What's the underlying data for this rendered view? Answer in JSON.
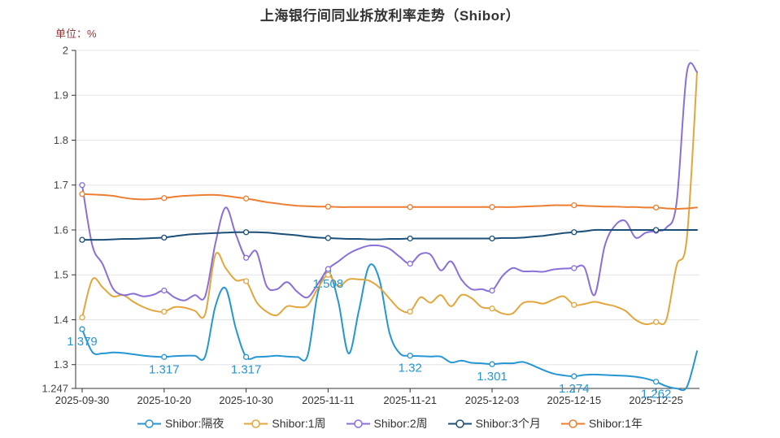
{
  "chart_data": {
    "type": "line",
    "title": "上海银行间同业拆放利率走势（Shibor）",
    "unit_label": "单位：%",
    "xlabel": "",
    "ylabel": "",
    "grid": true,
    "legend_position": "bottom",
    "y_axis_labels": [
      "2",
      "1.9",
      "1.8",
      "1.7",
      "1.6",
      "1.5",
      "1.4",
      "1.3",
      "1.247"
    ],
    "y_min": 1.247,
    "y_max": 2,
    "x_tick_labels": [
      "2025-09-30",
      "2025-10-20",
      "2025-10-30",
      "2025-11-11",
      "2025-11-21",
      "2025-12-03",
      "2025-12-15",
      "2025-12-25"
    ],
    "x_tick_indices": [
      0,
      8,
      16,
      24,
      32,
      40,
      48,
      56
    ],
    "num_points": 61,
    "colors": {
      "axis": "#333333",
      "gridline": "#e4e4e4",
      "title": "#333333",
      "unit_label": "#8b3a3a",
      "annotation": "#2596d3"
    },
    "series": [
      {
        "name": "Shibor:隔夜",
        "color": "#2596d3",
        "values": [
          1.379,
          1.328,
          1.325,
          1.327,
          1.326,
          1.323,
          1.32,
          1.318,
          1.317,
          1.319,
          1.32,
          1.32,
          1.318,
          1.43,
          1.47,
          1.38,
          1.317,
          1.317,
          1.318,
          1.32,
          1.318,
          1.317,
          1.32,
          1.46,
          1.508,
          1.44,
          1.325,
          1.42,
          1.52,
          1.49,
          1.37,
          1.325,
          1.32,
          1.319,
          1.318,
          1.318,
          1.305,
          1.309,
          1.304,
          1.303,
          1.301,
          1.303,
          1.303,
          1.306,
          1.298,
          1.288,
          1.28,
          1.276,
          1.274,
          1.277,
          1.278,
          1.277,
          1.276,
          1.275,
          1.273,
          1.269,
          1.262,
          1.252,
          1.247,
          1.25,
          1.33
        ]
      },
      {
        "name": "Shibor:1周",
        "color": "#e2a63d",
        "values": [
          1.405,
          1.49,
          1.472,
          1.452,
          1.455,
          1.44,
          1.428,
          1.42,
          1.418,
          1.428,
          1.427,
          1.42,
          1.412,
          1.545,
          1.515,
          1.488,
          1.486,
          1.44,
          1.418,
          1.41,
          1.43,
          1.428,
          1.432,
          1.47,
          1.5,
          1.475,
          1.49,
          1.49,
          1.487,
          1.472,
          1.447,
          1.423,
          1.418,
          1.45,
          1.438,
          1.455,
          1.43,
          1.455,
          1.448,
          1.428,
          1.425,
          1.414,
          1.414,
          1.437,
          1.44,
          1.436,
          1.445,
          1.452,
          1.433,
          1.435,
          1.44,
          1.435,
          1.43,
          1.42,
          1.4,
          1.39,
          1.395,
          1.4,
          1.52,
          1.58,
          1.95
        ]
      },
      {
        "name": "Shibor:2周",
        "color": "#8a6fd8",
        "values": [
          1.7,
          1.565,
          1.524,
          1.47,
          1.455,
          1.458,
          1.452,
          1.456,
          1.465,
          1.45,
          1.443,
          1.455,
          1.452,
          1.57,
          1.65,
          1.59,
          1.538,
          1.552,
          1.475,
          1.468,
          1.484,
          1.462,
          1.45,
          1.48,
          1.513,
          1.53,
          1.547,
          1.558,
          1.565,
          1.565,
          1.558,
          1.54,
          1.525,
          1.546,
          1.545,
          1.51,
          1.53,
          1.49,
          1.468,
          1.468,
          1.465,
          1.497,
          1.515,
          1.508,
          1.508,
          1.507,
          1.512,
          1.514,
          1.515,
          1.517,
          1.455,
          1.565,
          1.61,
          1.62,
          1.583,
          1.594,
          1.598,
          1.605,
          1.66,
          1.95,
          1.952
        ]
      },
      {
        "name": "Shibor:3个月",
        "color": "#1b4f78",
        "values": [
          1.578,
          1.578,
          1.578,
          1.579,
          1.58,
          1.58,
          1.581,
          1.582,
          1.583,
          1.586,
          1.589,
          1.591,
          1.592,
          1.593,
          1.594,
          1.595,
          1.595,
          1.595,
          1.594,
          1.592,
          1.59,
          1.588,
          1.585,
          1.583,
          1.582,
          1.581,
          1.58,
          1.58,
          1.579,
          1.579,
          1.58,
          1.58,
          1.581,
          1.581,
          1.581,
          1.581,
          1.581,
          1.581,
          1.581,
          1.581,
          1.581,
          1.582,
          1.582,
          1.583,
          1.585,
          1.587,
          1.59,
          1.593,
          1.595,
          1.597,
          1.6,
          1.6,
          1.6,
          1.6,
          1.6,
          1.6,
          1.6,
          1.6,
          1.6,
          1.6,
          1.6
        ]
      },
      {
        "name": "Shibor:1年",
        "color": "#ed7d31",
        "values": [
          1.68,
          1.679,
          1.678,
          1.676,
          1.672,
          1.669,
          1.668,
          1.669,
          1.671,
          1.674,
          1.676,
          1.677,
          1.678,
          1.678,
          1.676,
          1.673,
          1.67,
          1.666,
          1.662,
          1.659,
          1.656,
          1.654,
          1.653,
          1.652,
          1.652,
          1.651,
          1.651,
          1.651,
          1.651,
          1.651,
          1.651,
          1.651,
          1.651,
          1.651,
          1.651,
          1.651,
          1.651,
          1.651,
          1.651,
          1.651,
          1.651,
          1.651,
          1.651,
          1.652,
          1.653,
          1.654,
          1.655,
          1.655,
          1.655,
          1.654,
          1.653,
          1.652,
          1.652,
          1.651,
          1.651,
          1.65,
          1.65,
          1.648,
          1.647,
          1.648,
          1.65
        ]
      }
    ],
    "marker_indices": [
      0,
      8,
      16,
      24,
      32,
      40,
      48,
      56
    ],
    "annotations": [
      {
        "series": "Shibor:隔夜",
        "index": 0,
        "label": "1.379"
      },
      {
        "series": "Shibor:隔夜",
        "index": 8,
        "label": "1.317"
      },
      {
        "series": "Shibor:隔夜",
        "index": 16,
        "label": "1.317"
      },
      {
        "series": "Shibor:隔夜",
        "index": 24,
        "label": "1.508"
      },
      {
        "series": "Shibor:隔夜",
        "index": 32,
        "label": "1.32"
      },
      {
        "series": "Shibor:隔夜",
        "index": 40,
        "label": "1.301"
      },
      {
        "series": "Shibor:隔夜",
        "index": 48,
        "label": "1.274"
      },
      {
        "series": "Shibor:隔夜",
        "index": 56,
        "label": "1.262"
      }
    ]
  }
}
